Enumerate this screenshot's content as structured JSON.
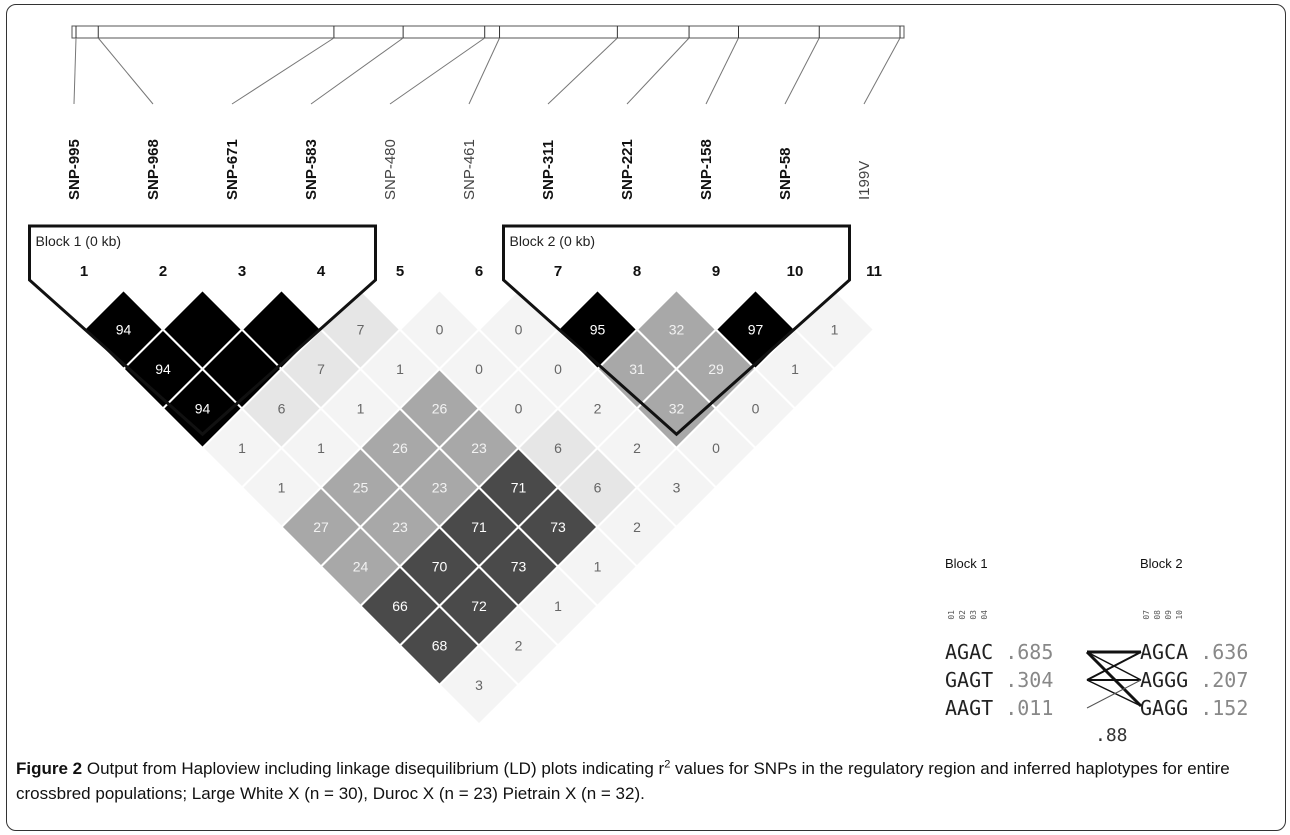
{
  "snps": [
    {
      "label": "SNP-995",
      "bold": true,
      "map_fraction": 0.0
    },
    {
      "label": "SNP-968",
      "bold": true,
      "map_fraction": 0.027
    },
    {
      "label": "SNP-671",
      "bold": true,
      "map_fraction": 0.313
    },
    {
      "label": "SNP-583",
      "bold": true,
      "map_fraction": 0.397
    },
    {
      "label": "SNP-480",
      "bold": false,
      "map_fraction": 0.496
    },
    {
      "label": "SNP-461",
      "bold": false,
      "map_fraction": 0.514
    },
    {
      "label": "SNP-311",
      "bold": true,
      "map_fraction": 0.657
    },
    {
      "label": "SNP-221",
      "bold": true,
      "map_fraction": 0.744
    },
    {
      "label": "SNP-158",
      "bold": true,
      "map_fraction": 0.804
    },
    {
      "label": "SNP-58",
      "bold": true,
      "map_fraction": 0.902
    },
    {
      "label": "I199V",
      "bold": false,
      "map_fraction": 1.0
    }
  ],
  "marker_numbers": [
    "1",
    "2",
    "3",
    "4",
    "5",
    "6",
    "7",
    "8",
    "9",
    "10",
    "11"
  ],
  "blocks": [
    {
      "label": "Block 1 (0 kb)",
      "first": 1,
      "last": 4
    },
    {
      "label": "Block 2 (0 kb)",
      "first": 7,
      "last": 10
    }
  ],
  "ld_matrix": [
    {
      "i": 1,
      "j": 2,
      "value": "94"
    },
    {
      "i": 1,
      "j": 3,
      "value": "94"
    },
    {
      "i": 1,
      "j": 4,
      "value": "94"
    },
    {
      "i": 1,
      "j": 5,
      "value": "1"
    },
    {
      "i": 1,
      "j": 6,
      "value": "1"
    },
    {
      "i": 1,
      "j": 7,
      "value": "27"
    },
    {
      "i": 1,
      "j": 8,
      "value": "24"
    },
    {
      "i": 1,
      "j": 9,
      "value": "66"
    },
    {
      "i": 1,
      "j": 10,
      "value": "68"
    },
    {
      "i": 1,
      "j": 11,
      "value": "3"
    },
    {
      "i": 2,
      "j": 3,
      "value": ""
    },
    {
      "i": 2,
      "j": 4,
      "value": ""
    },
    {
      "i": 2,
      "j": 5,
      "value": "6"
    },
    {
      "i": 2,
      "j": 6,
      "value": "1"
    },
    {
      "i": 2,
      "j": 7,
      "value": "25"
    },
    {
      "i": 2,
      "j": 8,
      "value": "23"
    },
    {
      "i": 2,
      "j": 9,
      "value": "70"
    },
    {
      "i": 2,
      "j": 10,
      "value": "72"
    },
    {
      "i": 2,
      "j": 11,
      "value": "2"
    },
    {
      "i": 3,
      "j": 4,
      "value": ""
    },
    {
      "i": 3,
      "j": 5,
      "value": "7"
    },
    {
      "i": 3,
      "j": 6,
      "value": "1"
    },
    {
      "i": 3,
      "j": 7,
      "value": "26"
    },
    {
      "i": 3,
      "j": 8,
      "value": "23"
    },
    {
      "i": 3,
      "j": 9,
      "value": "71"
    },
    {
      "i": 3,
      "j": 10,
      "value": "73"
    },
    {
      "i": 3,
      "j": 11,
      "value": "1"
    },
    {
      "i": 4,
      "j": 5,
      "value": "7"
    },
    {
      "i": 4,
      "j": 6,
      "value": "1"
    },
    {
      "i": 4,
      "j": 7,
      "value": "26"
    },
    {
      "i": 4,
      "j": 8,
      "value": "23"
    },
    {
      "i": 4,
      "j": 9,
      "value": "71"
    },
    {
      "i": 4,
      "j": 10,
      "value": "73"
    },
    {
      "i": 4,
      "j": 11,
      "value": "1"
    },
    {
      "i": 5,
      "j": 6,
      "value": "0"
    },
    {
      "i": 5,
      "j": 7,
      "value": "0"
    },
    {
      "i": 5,
      "j": 8,
      "value": "0"
    },
    {
      "i": 5,
      "j": 9,
      "value": "6"
    },
    {
      "i": 5,
      "j": 10,
      "value": "6"
    },
    {
      "i": 5,
      "j": 11,
      "value": "2"
    },
    {
      "i": 6,
      "j": 7,
      "value": "0"
    },
    {
      "i": 6,
      "j": 8,
      "value": "0"
    },
    {
      "i": 6,
      "j": 9,
      "value": "2"
    },
    {
      "i": 6,
      "j": 10,
      "value": "2"
    },
    {
      "i": 6,
      "j": 11,
      "value": "3"
    },
    {
      "i": 7,
      "j": 8,
      "value": "95"
    },
    {
      "i": 7,
      "j": 9,
      "value": "31"
    },
    {
      "i": 7,
      "j": 10,
      "value": "32"
    },
    {
      "i": 7,
      "j": 11,
      "value": "0"
    },
    {
      "i": 8,
      "j": 9,
      "value": "32"
    },
    {
      "i": 8,
      "j": 10,
      "value": "29"
    },
    {
      "i": 8,
      "j": 11,
      "value": "0"
    },
    {
      "i": 9,
      "j": 10,
      "value": "97"
    },
    {
      "i": 9,
      "j": 11,
      "value": "1"
    },
    {
      "i": 10,
      "j": 11,
      "value": "1"
    }
  ],
  "haplotypes": {
    "block1_title": "Block 1",
    "block2_title": "Block 2",
    "block1_markers": [
      "01",
      "02",
      "03",
      "04"
    ],
    "block2_markers": [
      "07",
      "08",
      "09",
      "10"
    ],
    "block1_rows": [
      {
        "seq": "AGAC",
        "freq": ".685"
      },
      {
        "seq": "GAGT",
        "freq": ".304"
      },
      {
        "seq": "AAGT",
        "freq": ".011"
      }
    ],
    "block2_rows": [
      {
        "seq": "AGCA",
        "freq": ".636"
      },
      {
        "seq": "AGGG",
        "freq": ".207"
      },
      {
        "seq": "GAGG",
        "freq": ".152"
      }
    ],
    "multiallelic_d": ".88"
  },
  "caption": {
    "label": "Figure 2",
    "text_before_sup": " Output from Haploview including linkage disequilibrium (LD) plots indicating r",
    "sup": "2",
    "text_after_sup": " values for SNPs in the regulatory region and inferred haplotypes for entire crossbred populations; Large White X (n = 30), Duroc X (n = 23) Pietrain X (n = 32)."
  },
  "colors": {
    "black_cell": "#000000",
    "dark_cell": "#4a4a4a",
    "mid_cell": "#a8a8a8",
    "light_cell": "#e6e6e6",
    "faint_cell": "#f4f4f4"
  }
}
